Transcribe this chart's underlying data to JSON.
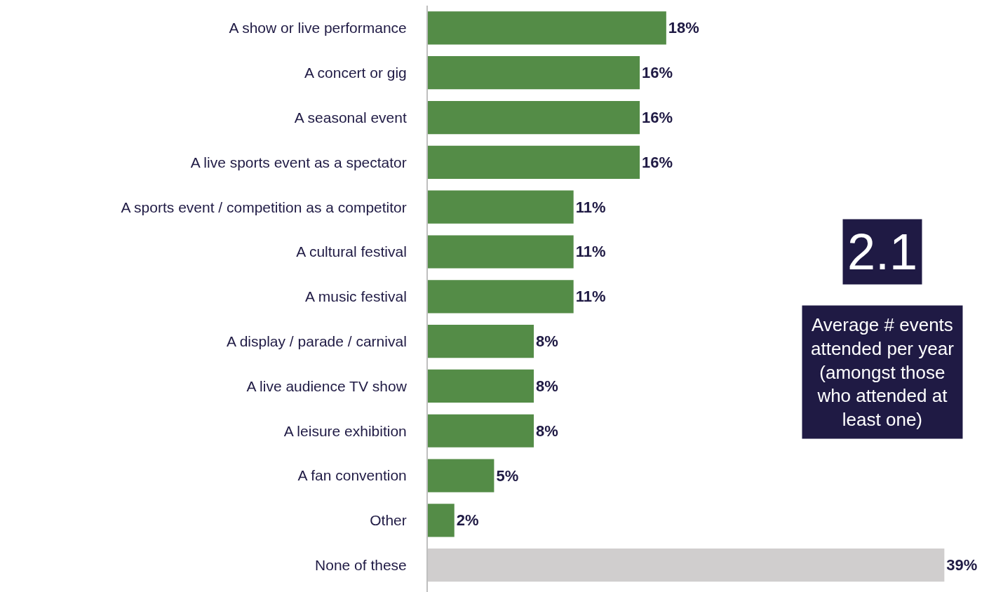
{
  "chart_data": {
    "type": "bar",
    "orientation": "horizontal",
    "categories": [
      "A show or live performance",
      "A concert or gig",
      "A seasonal event",
      "A live sports event as a spectator",
      "A sports event / competition as a competitor",
      "A cultural festival",
      "A music festival",
      "A display / parade / carnival",
      "A live audience TV show",
      "A leisure exhibition",
      "A fan convention",
      "Other",
      "None of these"
    ],
    "values": [
      18,
      16,
      16,
      16,
      11,
      11,
      11,
      8,
      8,
      8,
      5,
      2,
      39
    ],
    "value_labels": [
      "18%",
      "16%",
      "16%",
      "16%",
      "11%",
      "11%",
      "11%",
      "8%",
      "8%",
      "8%",
      "5%",
      "2%",
      "39%"
    ],
    "colors": [
      "#548c47",
      "#548c47",
      "#548c47",
      "#548c47",
      "#548c47",
      "#548c47",
      "#548c47",
      "#548c47",
      "#548c47",
      "#548c47",
      "#548c47",
      "#548c47",
      "#d0cece"
    ],
    "annotations": [
      "2.1",
      "Average # events attended per year (amongst those who attended at least one)"
    ],
    "legend": false
  }
}
